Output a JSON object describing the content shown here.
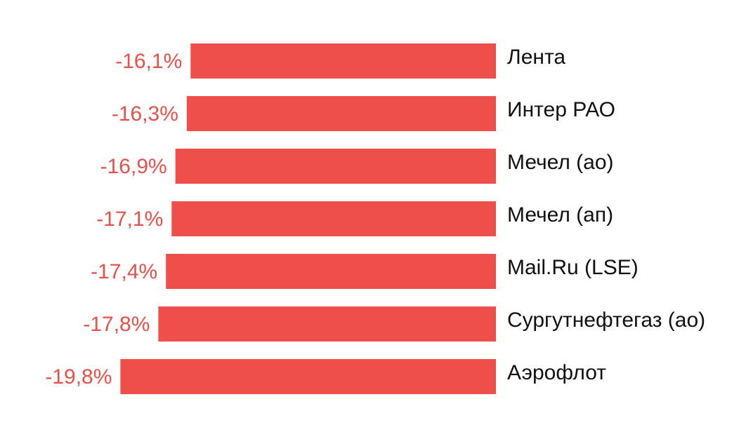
{
  "chart_data": {
    "type": "bar",
    "orientation": "horizontal",
    "categories": [
      "Лента",
      "Интер РАО",
      "Мечел (ао)",
      "Мечел (ап)",
      "Mail.Ru (LSE)",
      "Сургутнефтегаз (ао)",
      "Аэрофлот"
    ],
    "values": [
      -16.1,
      -16.3,
      -16.9,
      -17.1,
      -17.4,
      -17.8,
      -19.8
    ],
    "data_labels": [
      "-16,1%",
      "-16,3%",
      "-16,9%",
      "-17,1%",
      "-17,4%",
      "-17,8%",
      "-19,8%"
    ],
    "unit": "%",
    "title": "",
    "xlabel": "",
    "ylabel": "",
    "grid": false,
    "legend": "none",
    "bar_color": "#ef4f4a",
    "label_color": "#e8504a"
  }
}
